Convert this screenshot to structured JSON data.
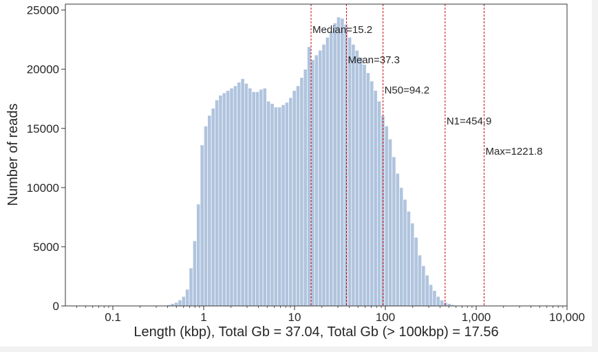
{
  "chart_data": {
    "type": "bar",
    "xlabel": "Length (kbp), Total Gb = 37.04, Total Gb (> 100kbp) = 17.56",
    "ylabel": "Number of reads",
    "x_scale": "log",
    "xlim": [
      0.03,
      10000
    ],
    "ylim": [
      0,
      25500
    ],
    "x_ticks": [
      0.1,
      1,
      10,
      100,
      1000,
      10000
    ],
    "x_tick_labels": [
      "0.1",
      "1",
      "10",
      "100",
      "1,000",
      "10,000"
    ],
    "y_ticks": [
      0,
      5000,
      10000,
      15000,
      20000,
      25000
    ],
    "y_tick_labels": [
      "0",
      "5000",
      "10000",
      "15000",
      "20000",
      "25000"
    ],
    "grid": false,
    "colors": {
      "bars": "#b0c4de",
      "markers": "#cc0000",
      "text": "#262626"
    },
    "bins": [
      {
        "x": 0.377,
        "count": 50
      },
      {
        "x": 0.414,
        "count": 100
      },
      {
        "x": 0.454,
        "count": 200
      },
      {
        "x": 0.499,
        "count": 300
      },
      {
        "x": 0.548,
        "count": 500
      },
      {
        "x": 0.601,
        "count": 800
      },
      {
        "x": 0.66,
        "count": 1400
      },
      {
        "x": 0.725,
        "count": 3200
      },
      {
        "x": 0.796,
        "count": 5500
      },
      {
        "x": 0.874,
        "count": 8600
      },
      {
        "x": 0.96,
        "count": 13600
      },
      {
        "x": 1.054,
        "count": 15200
      },
      {
        "x": 1.157,
        "count": 16100
      },
      {
        "x": 1.271,
        "count": 16700
      },
      {
        "x": 1.395,
        "count": 17400
      },
      {
        "x": 1.532,
        "count": 17800
      },
      {
        "x": 1.682,
        "count": 18000
      },
      {
        "x": 1.847,
        "count": 18200
      },
      {
        "x": 2.028,
        "count": 18400
      },
      {
        "x": 2.227,
        "count": 18600
      },
      {
        "x": 2.445,
        "count": 18900
      },
      {
        "x": 2.685,
        "count": 19200
      },
      {
        "x": 2.948,
        "count": 18800
      },
      {
        "x": 3.237,
        "count": 18400
      },
      {
        "x": 3.554,
        "count": 18100
      },
      {
        "x": 3.903,
        "count": 18100
      },
      {
        "x": 4.285,
        "count": 18300
      },
      {
        "x": 4.705,
        "count": 18400
      },
      {
        "x": 5.167,
        "count": 17300
      },
      {
        "x": 5.673,
        "count": 17100
      },
      {
        "x": 6.229,
        "count": 16800
      },
      {
        "x": 6.84,
        "count": 16800
      },
      {
        "x": 7.51,
        "count": 17000
      },
      {
        "x": 8.247,
        "count": 17200
      },
      {
        "x": 9.055,
        "count": 17600
      },
      {
        "x": 9.943,
        "count": 18200
      },
      {
        "x": 10.92,
        "count": 18600
      },
      {
        "x": 11.99,
        "count": 19300
      },
      {
        "x": 13.16,
        "count": 20000
      },
      {
        "x": 14.45,
        "count": 21900
      },
      {
        "x": 15.87,
        "count": 20800
      },
      {
        "x": 17.43,
        "count": 21200
      },
      {
        "x": 19.13,
        "count": 21600
      },
      {
        "x": 21.01,
        "count": 22100
      },
      {
        "x": 23.07,
        "count": 22700
      },
      {
        "x": 25.33,
        "count": 23200
      },
      {
        "x": 27.82,
        "count": 23900
      },
      {
        "x": 30.54,
        "count": 24400
      },
      {
        "x": 33.54,
        "count": 24300
      },
      {
        "x": 36.83,
        "count": 23800
      },
      {
        "x": 40.44,
        "count": 22700
      },
      {
        "x": 44.4,
        "count": 22100
      },
      {
        "x": 48.76,
        "count": 21600
      },
      {
        "x": 53.54,
        "count": 21000
      },
      {
        "x": 58.79,
        "count": 20400
      },
      {
        "x": 64.55,
        "count": 19700
      },
      {
        "x": 70.88,
        "count": 19000
      },
      {
        "x": 77.83,
        "count": 18200
      },
      {
        "x": 85.46,
        "count": 17300
      },
      {
        "x": 93.84,
        "count": 16100
      },
      {
        "x": 103.0,
        "count": 15200
      },
      {
        "x": 113.1,
        "count": 14100
      },
      {
        "x": 124.2,
        "count": 12600
      },
      {
        "x": 136.4,
        "count": 11200
      },
      {
        "x": 149.8,
        "count": 10000
      },
      {
        "x": 164.5,
        "count": 9000
      },
      {
        "x": 180.6,
        "count": 8000
      },
      {
        "x": 198.3,
        "count": 7000
      },
      {
        "x": 217.8,
        "count": 5800
      },
      {
        "x": 239.1,
        "count": 4300
      },
      {
        "x": 262.6,
        "count": 3400
      },
      {
        "x": 288.3,
        "count": 2600
      },
      {
        "x": 316.6,
        "count": 1800
      },
      {
        "x": 347.6,
        "count": 1300
      },
      {
        "x": 381.7,
        "count": 800
      },
      {
        "x": 419.2,
        "count": 500
      },
      {
        "x": 460.3,
        "count": 300
      },
      {
        "x": 505.4,
        "count": 200
      },
      {
        "x": 555.0,
        "count": 100
      },
      {
        "x": 609.4,
        "count": 50
      }
    ],
    "annotations": [
      {
        "label": "Median=15.2",
        "x": 15.2
      },
      {
        "label": "Mean=37.3",
        "x": 37.3
      },
      {
        "label": "N50=94.2",
        "x": 94.2
      },
      {
        "label": "N1=454.9",
        "x": 454.9
      },
      {
        "label": "Max=1221.8",
        "x": 1221.8
      }
    ]
  }
}
